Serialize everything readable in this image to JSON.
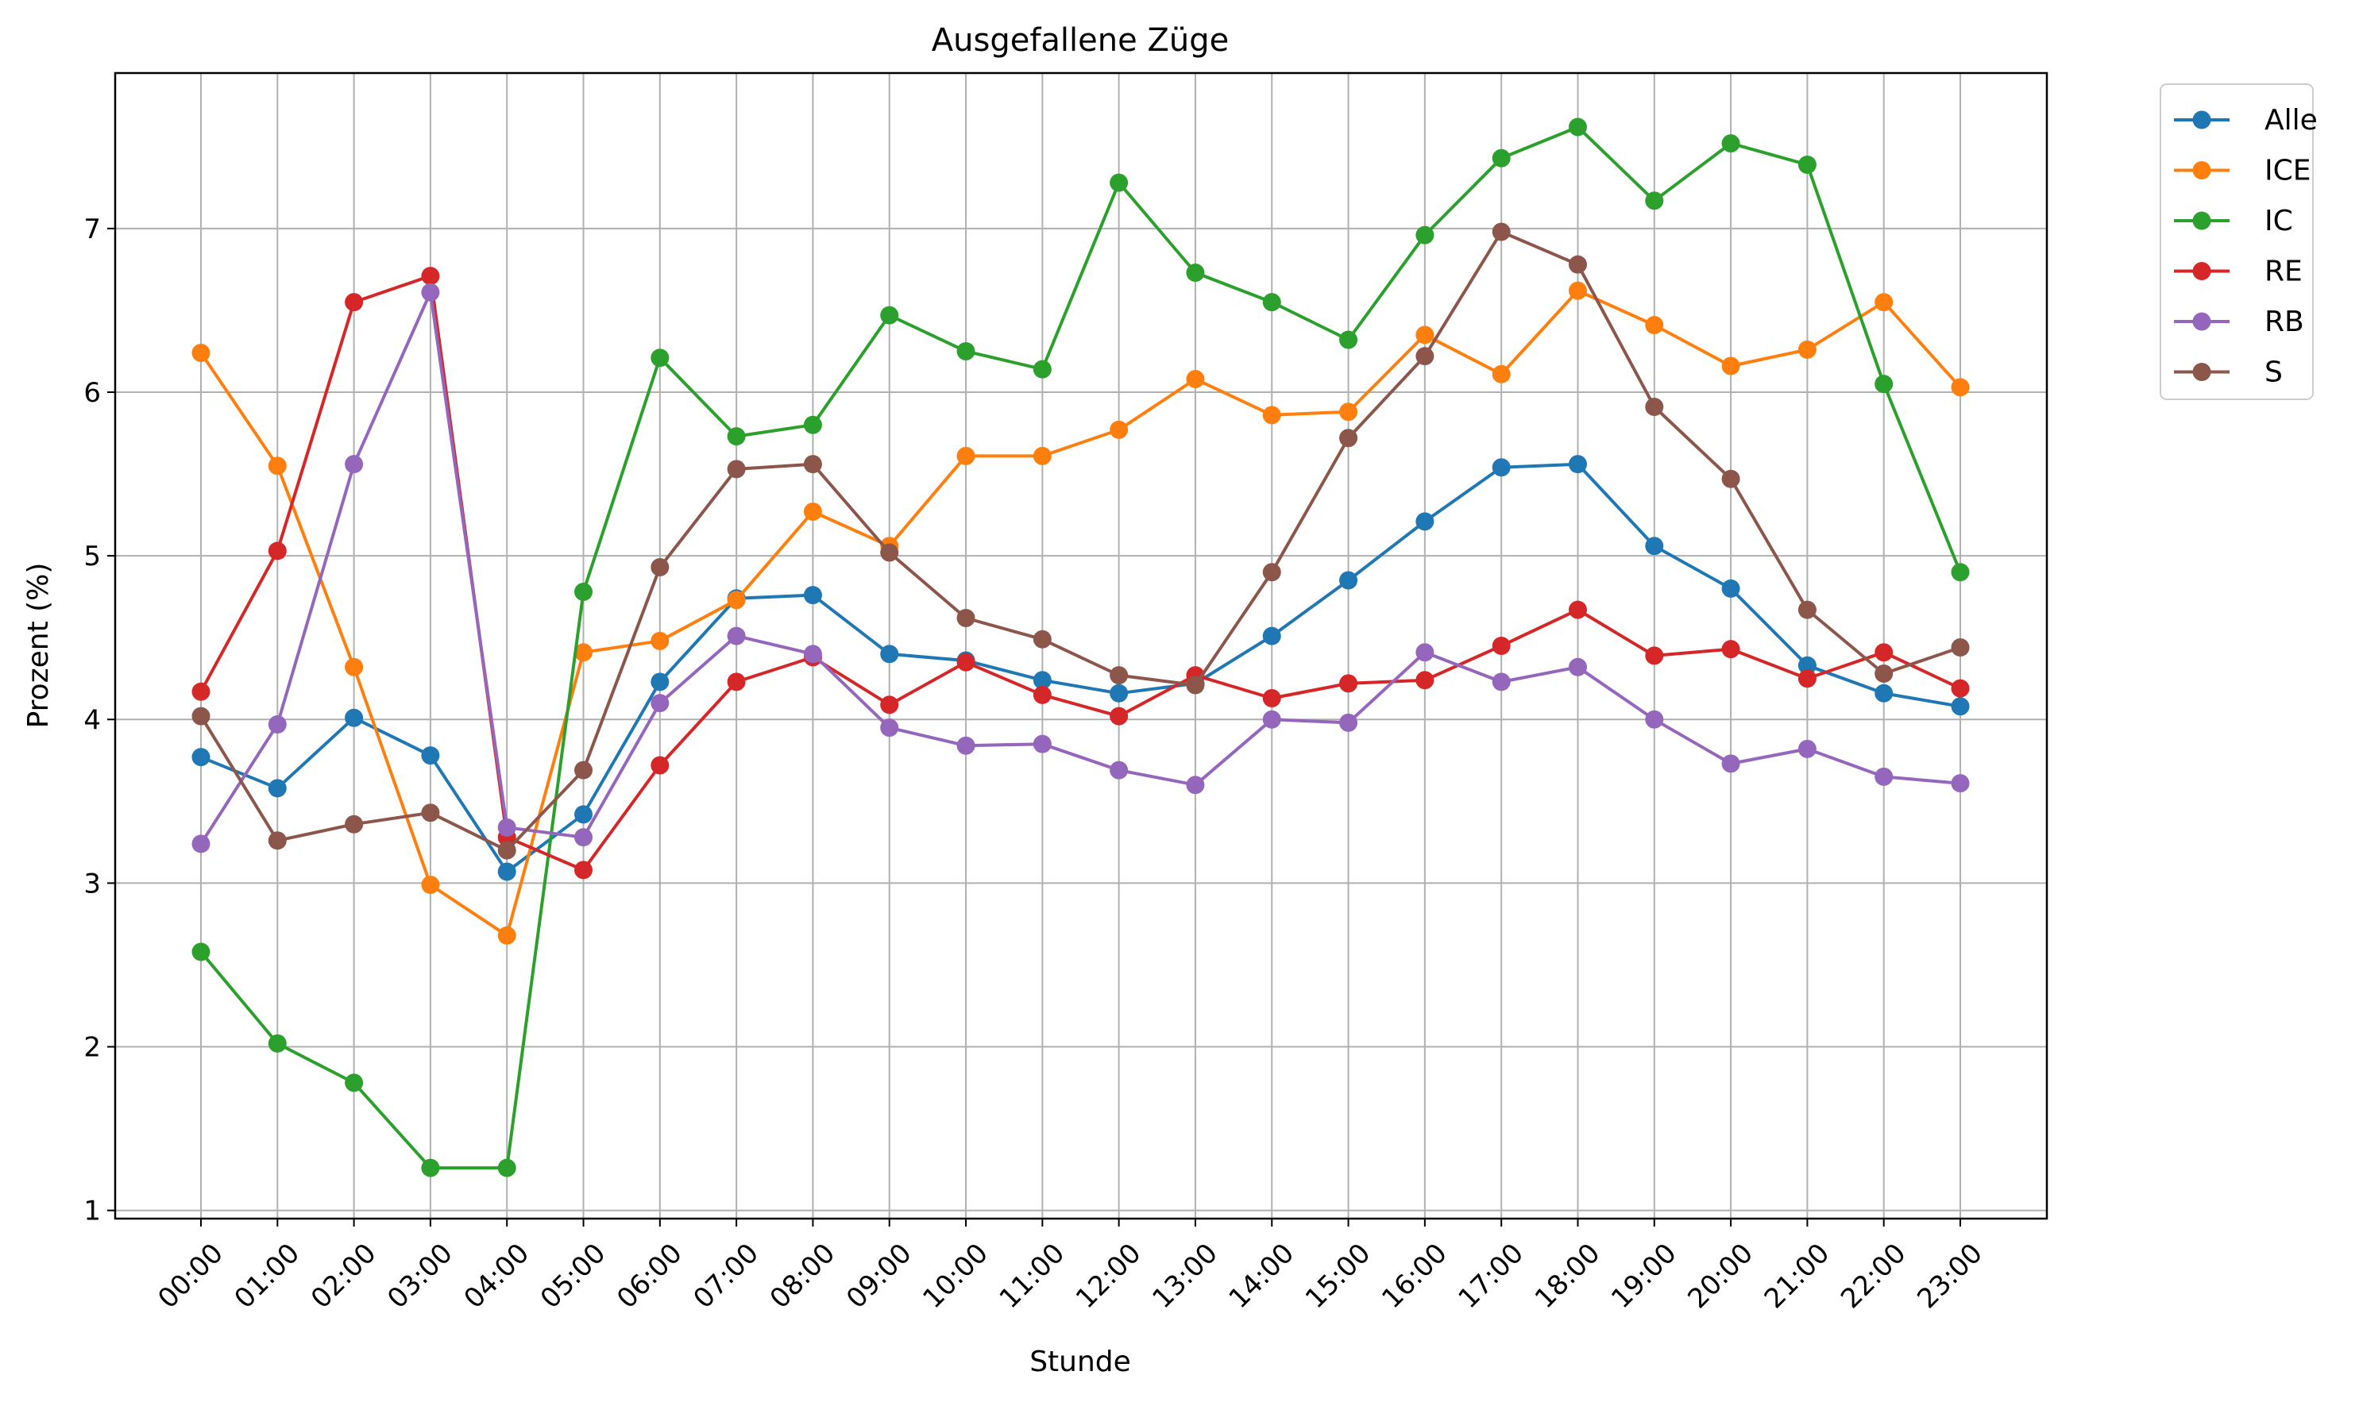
{
  "chart_data": {
    "type": "line",
    "title": "Ausgefallene Züge",
    "xlabel": "Stunde",
    "ylabel": "Prozent (%)",
    "ylim": [
      0.95,
      7.95
    ],
    "yticks": [
      1,
      2,
      3,
      4,
      5,
      6,
      7
    ],
    "grid": true,
    "legend_position": "outside-top-right",
    "categories": [
      "00:00",
      "01:00",
      "02:00",
      "03:00",
      "04:00",
      "05:00",
      "06:00",
      "07:00",
      "08:00",
      "09:00",
      "10:00",
      "11:00",
      "12:00",
      "13:00",
      "14:00",
      "15:00",
      "16:00",
      "17:00",
      "18:00",
      "19:00",
      "20:00",
      "21:00",
      "22:00",
      "23:00"
    ],
    "series": [
      {
        "name": "Alle",
        "color": "#1f77b4",
        "values": [
          3.77,
          3.58,
          4.01,
          3.78,
          3.07,
          3.42,
          4.23,
          4.74,
          4.76,
          4.4,
          4.36,
          4.24,
          4.16,
          4.22,
          4.51,
          4.85,
          5.21,
          5.54,
          5.56,
          5.06,
          4.8,
          4.33,
          4.16,
          4.08
        ]
      },
      {
        "name": "ICE",
        "color": "#ff7f0e",
        "values": [
          6.24,
          5.55,
          4.32,
          2.99,
          2.68,
          4.41,
          4.48,
          4.73,
          5.27,
          5.06,
          5.61,
          5.61,
          5.77,
          6.08,
          5.86,
          5.88,
          6.35,
          6.11,
          6.62,
          6.41,
          6.16,
          6.26,
          6.55,
          6.03
        ]
      },
      {
        "name": "IC",
        "color": "#2ca02c",
        "values": [
          2.58,
          2.02,
          1.78,
          1.26,
          1.26,
          4.78,
          6.21,
          5.73,
          5.8,
          6.47,
          6.25,
          6.14,
          7.28,
          6.73,
          6.55,
          6.32,
          6.96,
          7.43,
          7.62,
          7.17,
          7.52,
          7.39,
          6.05,
          4.9
        ]
      },
      {
        "name": "RE",
        "color": "#d62728",
        "values": [
          4.17,
          5.03,
          6.55,
          6.71,
          3.28,
          3.08,
          3.72,
          4.23,
          4.38,
          4.09,
          4.35,
          4.15,
          4.02,
          4.27,
          4.13,
          4.22,
          4.24,
          4.45,
          4.67,
          4.39,
          4.43,
          4.25,
          4.41,
          4.19
        ]
      },
      {
        "name": "RB",
        "color": "#9467bd",
        "values": [
          3.24,
          3.97,
          5.56,
          6.61,
          3.34,
          3.28,
          4.1,
          4.51,
          4.4,
          3.95,
          3.84,
          3.85,
          3.69,
          3.6,
          4.0,
          3.98,
          4.41,
          4.23,
          4.32,
          4.0,
          3.73,
          3.82,
          3.65,
          3.61
        ]
      },
      {
        "name": "S",
        "color": "#8c564b",
        "values": [
          4.02,
          3.26,
          3.36,
          3.43,
          3.2,
          3.69,
          4.93,
          5.53,
          5.56,
          5.02,
          4.62,
          4.49,
          4.27,
          4.21,
          4.9,
          5.72,
          6.22,
          6.98,
          6.78,
          5.91,
          5.47,
          4.67,
          4.28,
          4.44
        ]
      }
    ]
  }
}
